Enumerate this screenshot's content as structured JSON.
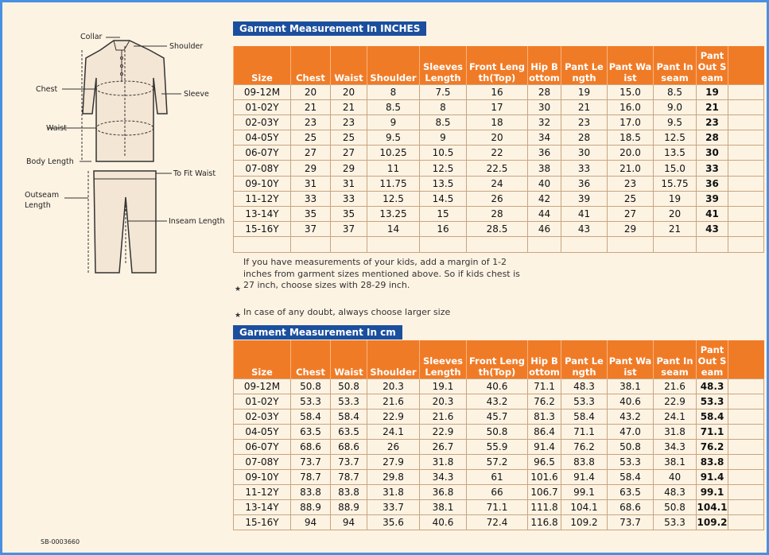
{
  "diagram_labels": {
    "collar": "Collar",
    "shoulder": "Shoulder",
    "chest": "Chest",
    "sleeve": "Sleeve",
    "waist": "Waist",
    "body_length": "Body Length",
    "to_fit_waist": "To Fit Waist",
    "outseam_length": "Outseam Length",
    "inseam_length": "Inseam Length"
  },
  "tables": [
    {
      "title": "Garment Measurement In INCHES",
      "headers": [
        "Size",
        "Chest",
        "Waist",
        "Shoulder",
        "Sleeves Length",
        "Front Length(Top)",
        "Hip Bottom",
        "Pant Length",
        "Pant Waist",
        "Pant Inseam",
        "Pant Out Seam"
      ],
      "rows": [
        [
          "09-12M",
          "20",
          "20",
          "8",
          "7.5",
          "16",
          "28",
          "19",
          "15.0",
          "8.5",
          "19"
        ],
        [
          "01-02Y",
          "21",
          "21",
          "8.5",
          "8",
          "17",
          "30",
          "21",
          "16.0",
          "9.0",
          "21"
        ],
        [
          "02-03Y",
          "23",
          "23",
          "9",
          "8.5",
          "18",
          "32",
          "23",
          "17.0",
          "9.5",
          "23"
        ],
        [
          "04-05Y",
          "25",
          "25",
          "9.5",
          "9",
          "20",
          "34",
          "28",
          "18.5",
          "12.5",
          "28"
        ],
        [
          "06-07Y",
          "27",
          "27",
          "10.25",
          "10.5",
          "22",
          "36",
          "30",
          "20.0",
          "13.5",
          "30"
        ],
        [
          "07-08Y",
          "29",
          "29",
          "11",
          "12.5",
          "22.5",
          "38",
          "33",
          "21.0",
          "15.0",
          "33"
        ],
        [
          "09-10Y",
          "31",
          "31",
          "11.75",
          "13.5",
          "24",
          "40",
          "36",
          "23",
          "15.75",
          "36"
        ],
        [
          "11-12Y",
          "33",
          "33",
          "12.5",
          "14.5",
          "26",
          "42",
          "39",
          "25",
          "19",
          "39"
        ],
        [
          "13-14Y",
          "35",
          "35",
          "13.25",
          "15",
          "28",
          "44",
          "41",
          "27",
          "20",
          "41"
        ],
        [
          "15-16Y",
          "37",
          "37",
          "14",
          "16",
          "28.5",
          "46",
          "43",
          "29",
          "21",
          "43"
        ]
      ]
    },
    {
      "title": "Garment Measurement In cm",
      "headers": [
        "Size",
        "Chest",
        "Waist",
        "Shoulder",
        "Sleeves Length",
        "Front Length(Top)",
        "Hip Bottom",
        "Pant Length",
        "Pant Waist",
        "Pant Inseam",
        "Pant Out Seam"
      ],
      "rows": [
        [
          "09-12M",
          "50.8",
          "50.8",
          "20.3",
          "19.1",
          "40.6",
          "71.1",
          "48.3",
          "38.1",
          "21.6",
          "48.3"
        ],
        [
          "01-02Y",
          "53.3",
          "53.3",
          "21.6",
          "20.3",
          "43.2",
          "76.2",
          "53.3",
          "40.6",
          "22.9",
          "53.3"
        ],
        [
          "02-03Y",
          "58.4",
          "58.4",
          "22.9",
          "21.6",
          "45.7",
          "81.3",
          "58.4",
          "43.2",
          "24.1",
          "58.4"
        ],
        [
          "04-05Y",
          "63.5",
          "63.5",
          "24.1",
          "22.9",
          "50.8",
          "86.4",
          "71.1",
          "47.0",
          "31.8",
          "71.1"
        ],
        [
          "06-07Y",
          "68.6",
          "68.6",
          "26",
          "26.7",
          "55.9",
          "91.4",
          "76.2",
          "50.8",
          "34.3",
          "76.2"
        ],
        [
          "07-08Y",
          "73.7",
          "73.7",
          "27.9",
          "31.8",
          "57.2",
          "96.5",
          "83.8",
          "53.3",
          "38.1",
          "83.8"
        ],
        [
          "09-10Y",
          "78.7",
          "78.7",
          "29.8",
          "34.3",
          "61",
          "101.6",
          "91.4",
          "58.4",
          "40",
          "91.4"
        ],
        [
          "11-12Y",
          "83.8",
          "83.8",
          "31.8",
          "36.8",
          "66",
          "106.7",
          "99.1",
          "63.5",
          "48.3",
          "99.1"
        ],
        [
          "13-14Y",
          "88.9",
          "88.9",
          "33.7",
          "38.1",
          "71.1",
          "111.8",
          "104.1",
          "68.6",
          "50.8",
          "104.1"
        ],
        [
          "15-16Y",
          "94",
          "94",
          "35.6",
          "40.6",
          "72.4",
          "116.8",
          "109.2",
          "73.7",
          "53.3",
          "109.2"
        ]
      ]
    }
  ],
  "notes": [
    "If you have measurements of your kids, add a margin of 1-2 inches from garment sizes mentioned above. So if kids chest is 27 inch, choose sizes with 28-29 inch.",
    "In case of any doubt, always choose larger size"
  ],
  "footer": "SB-0003660"
}
